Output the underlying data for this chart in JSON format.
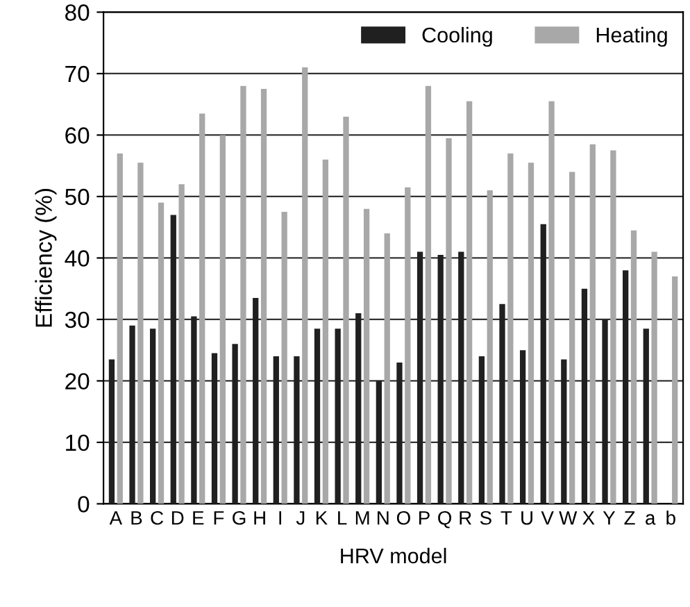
{
  "chart_data": {
    "type": "bar",
    "xlabel": "HRV model",
    "ylabel": "Efficiency (%)",
    "categories": [
      "A",
      "B",
      "C",
      "D",
      "E",
      "F",
      "G",
      "H",
      "I",
      "J",
      "K",
      "L",
      "M",
      "N",
      "O",
      "P",
      "Q",
      "R",
      "S",
      "T",
      "U",
      "V",
      "W",
      "X",
      "Y",
      "Z",
      "a",
      "b"
    ],
    "series": [
      {
        "name": "Cooling",
        "color": "#202020",
        "values": [
          23.5,
          29,
          28.5,
          47,
          30.5,
          24.5,
          26,
          33.5,
          24,
          24,
          28.5,
          28.5,
          31,
          20,
          23,
          41,
          40.5,
          41,
          24,
          32.5,
          25,
          45.5,
          23.5,
          35,
          30,
          38,
          28.5,
          null
        ]
      },
      {
        "name": "Heating",
        "color": "#a8a8a8",
        "values": [
          57,
          55.5,
          49,
          52,
          63.5,
          60,
          68,
          67.5,
          47.5,
          71,
          56,
          63,
          48,
          44,
          51.5,
          68,
          59.5,
          65.5,
          51,
          57,
          55.5,
          65.5,
          54,
          58.5,
          57.5,
          44.5,
          41,
          37
        ]
      }
    ],
    "ylim": [
      0,
      80
    ],
    "yticks": [
      0,
      10,
      20,
      30,
      40,
      50,
      60,
      70,
      80
    ],
    "grid": "y",
    "legend": "top right"
  }
}
